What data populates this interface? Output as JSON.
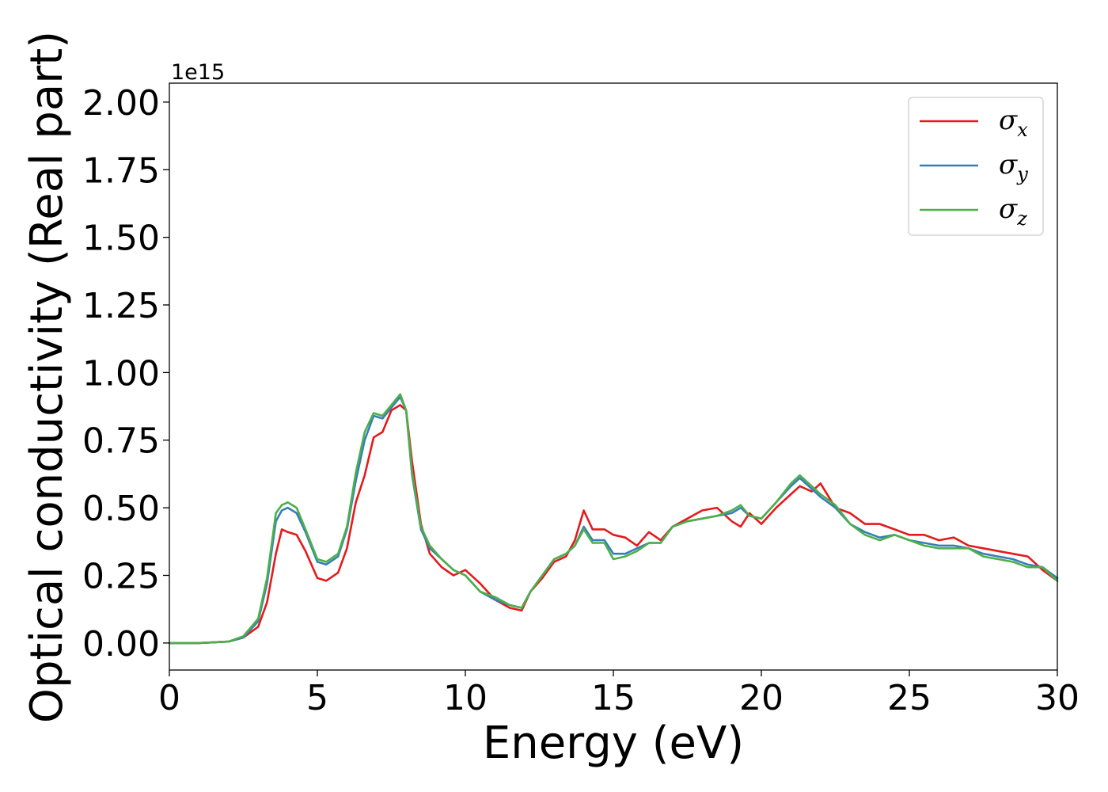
{
  "chart_data": {
    "type": "line",
    "title": "",
    "xlabel": "Energy (eV)",
    "ylabel": "Optical conductivity (Real part)",
    "y_offset_label": "1e15",
    "xlim": [
      0,
      30
    ],
    "ylim": [
      -0.1,
      2.07
    ],
    "x_ticks": [
      0,
      5,
      10,
      15,
      20,
      25,
      30
    ],
    "x_tick_labels": [
      "0",
      "5",
      "10",
      "15",
      "20",
      "25",
      "30"
    ],
    "y_ticks": [
      0,
      0.25,
      0.5,
      0.75,
      1.0,
      1.25,
      1.5,
      1.75,
      2.0
    ],
    "y_tick_labels": [
      "0.00",
      "0.25",
      "0.50",
      "0.75",
      "1.00",
      "1.25",
      "1.50",
      "1.75",
      "2.00"
    ],
    "grid": false,
    "legend_position": "top-right",
    "x": [
      0,
      1,
      2,
      2.5,
      3.0,
      3.3,
      3.6,
      3.8,
      4.0,
      4.3,
      4.6,
      5.0,
      5.3,
      5.7,
      6.0,
      6.3,
      6.6,
      6.9,
      7.2,
      7.5,
      7.8,
      8.0,
      8.2,
      8.5,
      8.8,
      9.2,
      9.6,
      10.0,
      10.5,
      11.0,
      11.5,
      11.9,
      12.2,
      12.6,
      13.0,
      13.4,
      13.7,
      14.0,
      14.3,
      14.7,
      15.0,
      15.4,
      15.8,
      16.2,
      16.6,
      17.0,
      17.5,
      18.0,
      18.5,
      19.0,
      19.3,
      19.6,
      20.0,
      20.5,
      21.0,
      21.3,
      21.7,
      22.0,
      22.5,
      23.0,
      23.5,
      24.0,
      24.5,
      25.0,
      25.5,
      26.0,
      26.5,
      27.0,
      27.5,
      28.0,
      28.5,
      29.0,
      29.5,
      30.0
    ],
    "series": [
      {
        "name": "σx",
        "symbol": "σ",
        "subscript": "x",
        "color": "#e41a1c",
        "values": [
          0,
          0.0,
          0.005,
          0.02,
          0.06,
          0.15,
          0.33,
          0.42,
          0.41,
          0.4,
          0.34,
          0.24,
          0.23,
          0.26,
          0.35,
          0.52,
          0.62,
          0.76,
          0.78,
          0.86,
          0.88,
          0.86,
          0.67,
          0.44,
          0.33,
          0.28,
          0.25,
          0.27,
          0.22,
          0.16,
          0.13,
          0.12,
          0.19,
          0.24,
          0.3,
          0.32,
          0.38,
          0.49,
          0.42,
          0.42,
          0.4,
          0.39,
          0.36,
          0.41,
          0.38,
          0.43,
          0.46,
          0.49,
          0.5,
          0.45,
          0.43,
          0.48,
          0.44,
          0.5,
          0.55,
          0.58,
          0.56,
          0.59,
          0.5,
          0.48,
          0.44,
          0.44,
          0.42,
          0.4,
          0.4,
          0.38,
          0.39,
          0.36,
          0.35,
          0.34,
          0.33,
          0.32,
          0.27,
          0.23
        ]
      },
      {
        "name": "σy",
        "symbol": "σ",
        "subscript": "y",
        "color": "#377eb8",
        "values": [
          0,
          0.0,
          0.005,
          0.02,
          0.08,
          0.22,
          0.45,
          0.49,
          0.5,
          0.48,
          0.41,
          0.3,
          0.29,
          0.32,
          0.42,
          0.6,
          0.75,
          0.84,
          0.83,
          0.87,
          0.91,
          0.86,
          0.62,
          0.42,
          0.35,
          0.31,
          0.27,
          0.25,
          0.19,
          0.16,
          0.14,
          0.13,
          0.19,
          0.25,
          0.31,
          0.33,
          0.36,
          0.43,
          0.38,
          0.38,
          0.33,
          0.33,
          0.35,
          0.37,
          0.37,
          0.43,
          0.45,
          0.46,
          0.47,
          0.48,
          0.5,
          0.47,
          0.46,
          0.52,
          0.58,
          0.61,
          0.57,
          0.54,
          0.5,
          0.44,
          0.41,
          0.39,
          0.4,
          0.38,
          0.37,
          0.36,
          0.36,
          0.35,
          0.33,
          0.32,
          0.31,
          0.29,
          0.28,
          0.24
        ]
      },
      {
        "name": "σz",
        "symbol": "σ",
        "subscript": "z",
        "color": "#4daf4a",
        "values": [
          0,
          0.0,
          0.005,
          0.025,
          0.09,
          0.24,
          0.48,
          0.51,
          0.52,
          0.5,
          0.42,
          0.31,
          0.3,
          0.33,
          0.43,
          0.63,
          0.78,
          0.85,
          0.84,
          0.88,
          0.92,
          0.86,
          0.63,
          0.43,
          0.36,
          0.31,
          0.27,
          0.25,
          0.19,
          0.17,
          0.14,
          0.13,
          0.19,
          0.25,
          0.31,
          0.33,
          0.36,
          0.42,
          0.37,
          0.37,
          0.31,
          0.32,
          0.34,
          0.37,
          0.37,
          0.43,
          0.45,
          0.46,
          0.47,
          0.49,
          0.51,
          0.47,
          0.46,
          0.52,
          0.59,
          0.62,
          0.58,
          0.55,
          0.51,
          0.44,
          0.4,
          0.38,
          0.4,
          0.38,
          0.36,
          0.35,
          0.35,
          0.35,
          0.32,
          0.31,
          0.3,
          0.28,
          0.28,
          0.23
        ]
      }
    ]
  }
}
